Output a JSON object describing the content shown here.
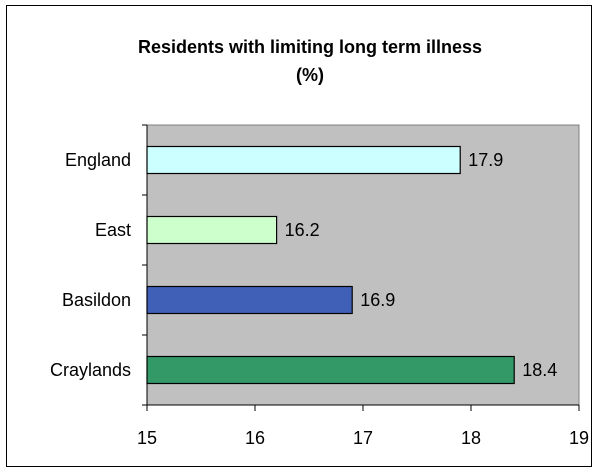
{
  "chart_data": {
    "type": "bar",
    "orientation": "horizontal",
    "title_lines": [
      "Residents with limiting long term illness",
      "(%)"
    ],
    "categories": [
      "England",
      "East",
      "Basildon",
      "Craylands"
    ],
    "values": [
      17.9,
      16.2,
      16.9,
      18.4
    ],
    "data_labels": [
      "17.9",
      "16.2",
      "16.9",
      "18.4"
    ],
    "colors": [
      "#ccffff",
      "#ccffcc",
      "#4060b8",
      "#339966"
    ],
    "xlim": [
      15,
      19
    ],
    "xticks": [
      "15",
      "16",
      "17",
      "18",
      "19"
    ],
    "plot_background": "#c0c0c0",
    "grid": false,
    "legend": "none",
    "xlabel": "",
    "ylabel": ""
  }
}
